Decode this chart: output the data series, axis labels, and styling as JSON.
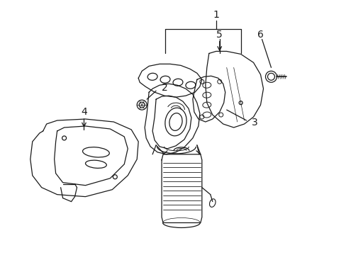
{
  "background_color": "#ffffff",
  "line_color": "#1a1a1a",
  "fig_width": 4.89,
  "fig_height": 3.6,
  "dpi": 100,
  "label_fontsize": 10,
  "lw": 0.9
}
